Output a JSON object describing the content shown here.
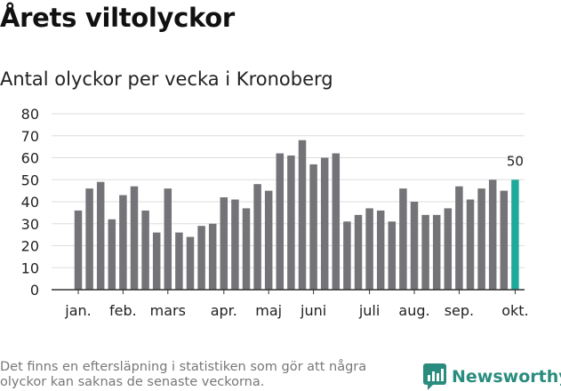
{
  "title": "Årets viltolyckor",
  "subtitle": "Antal olyckor per vecka i Kronoberg",
  "footnote": "Det finns en eftersläpning i statistiken som gör att några olyckor kan saknas de senaste veckorna.",
  "brand": {
    "name": "Newsworthy",
    "icon": "newsworthy-logo-icon",
    "color": "#2a8c7e"
  },
  "colors": {
    "bar": "#747378",
    "highlight": "#1fa99b",
    "grid": "#dddddd",
    "axis": "#333333"
  },
  "chart_data": {
    "type": "bar",
    "title": "Antal olyckor per vecka i Kronoberg",
    "xlabel": "",
    "ylabel": "",
    "ylim": [
      0,
      80
    ],
    "yticks": [
      0,
      10,
      20,
      30,
      40,
      50,
      60,
      70,
      80
    ],
    "grid": true,
    "weeks": [
      1,
      2,
      3,
      4,
      5,
      6,
      7,
      8,
      9,
      10,
      11,
      12,
      13,
      14,
      15,
      16,
      17,
      18,
      19,
      20,
      21,
      22,
      23,
      24,
      25,
      26,
      27,
      28,
      29,
      30,
      31,
      32,
      33,
      34,
      35,
      36,
      37,
      38,
      39,
      40
    ],
    "values": [
      36,
      46,
      49,
      32,
      43,
      47,
      36,
      26,
      46,
      26,
      24,
      29,
      30,
      42,
      41,
      37,
      48,
      45,
      62,
      61,
      68,
      57,
      60,
      62,
      31,
      34,
      37,
      36,
      31,
      46,
      40,
      34,
      34,
      37,
      47,
      41,
      46,
      50,
      45,
      50
    ],
    "month_labels": [
      {
        "label": "jan.",
        "at_week": 1
      },
      {
        "label": "feb.",
        "at_week": 5
      },
      {
        "label": "mars",
        "at_week": 9
      },
      {
        "label": "apr.",
        "at_week": 14
      },
      {
        "label": "maj",
        "at_week": 18
      },
      {
        "label": "juni",
        "at_week": 22
      },
      {
        "label": "juli",
        "at_week": 27
      },
      {
        "label": "aug.",
        "at_week": 31
      },
      {
        "label": "sep.",
        "at_week": 35
      },
      {
        "label": "okt.",
        "at_week": 40
      }
    ],
    "highlight_week": 40,
    "highlight_label": "50"
  }
}
